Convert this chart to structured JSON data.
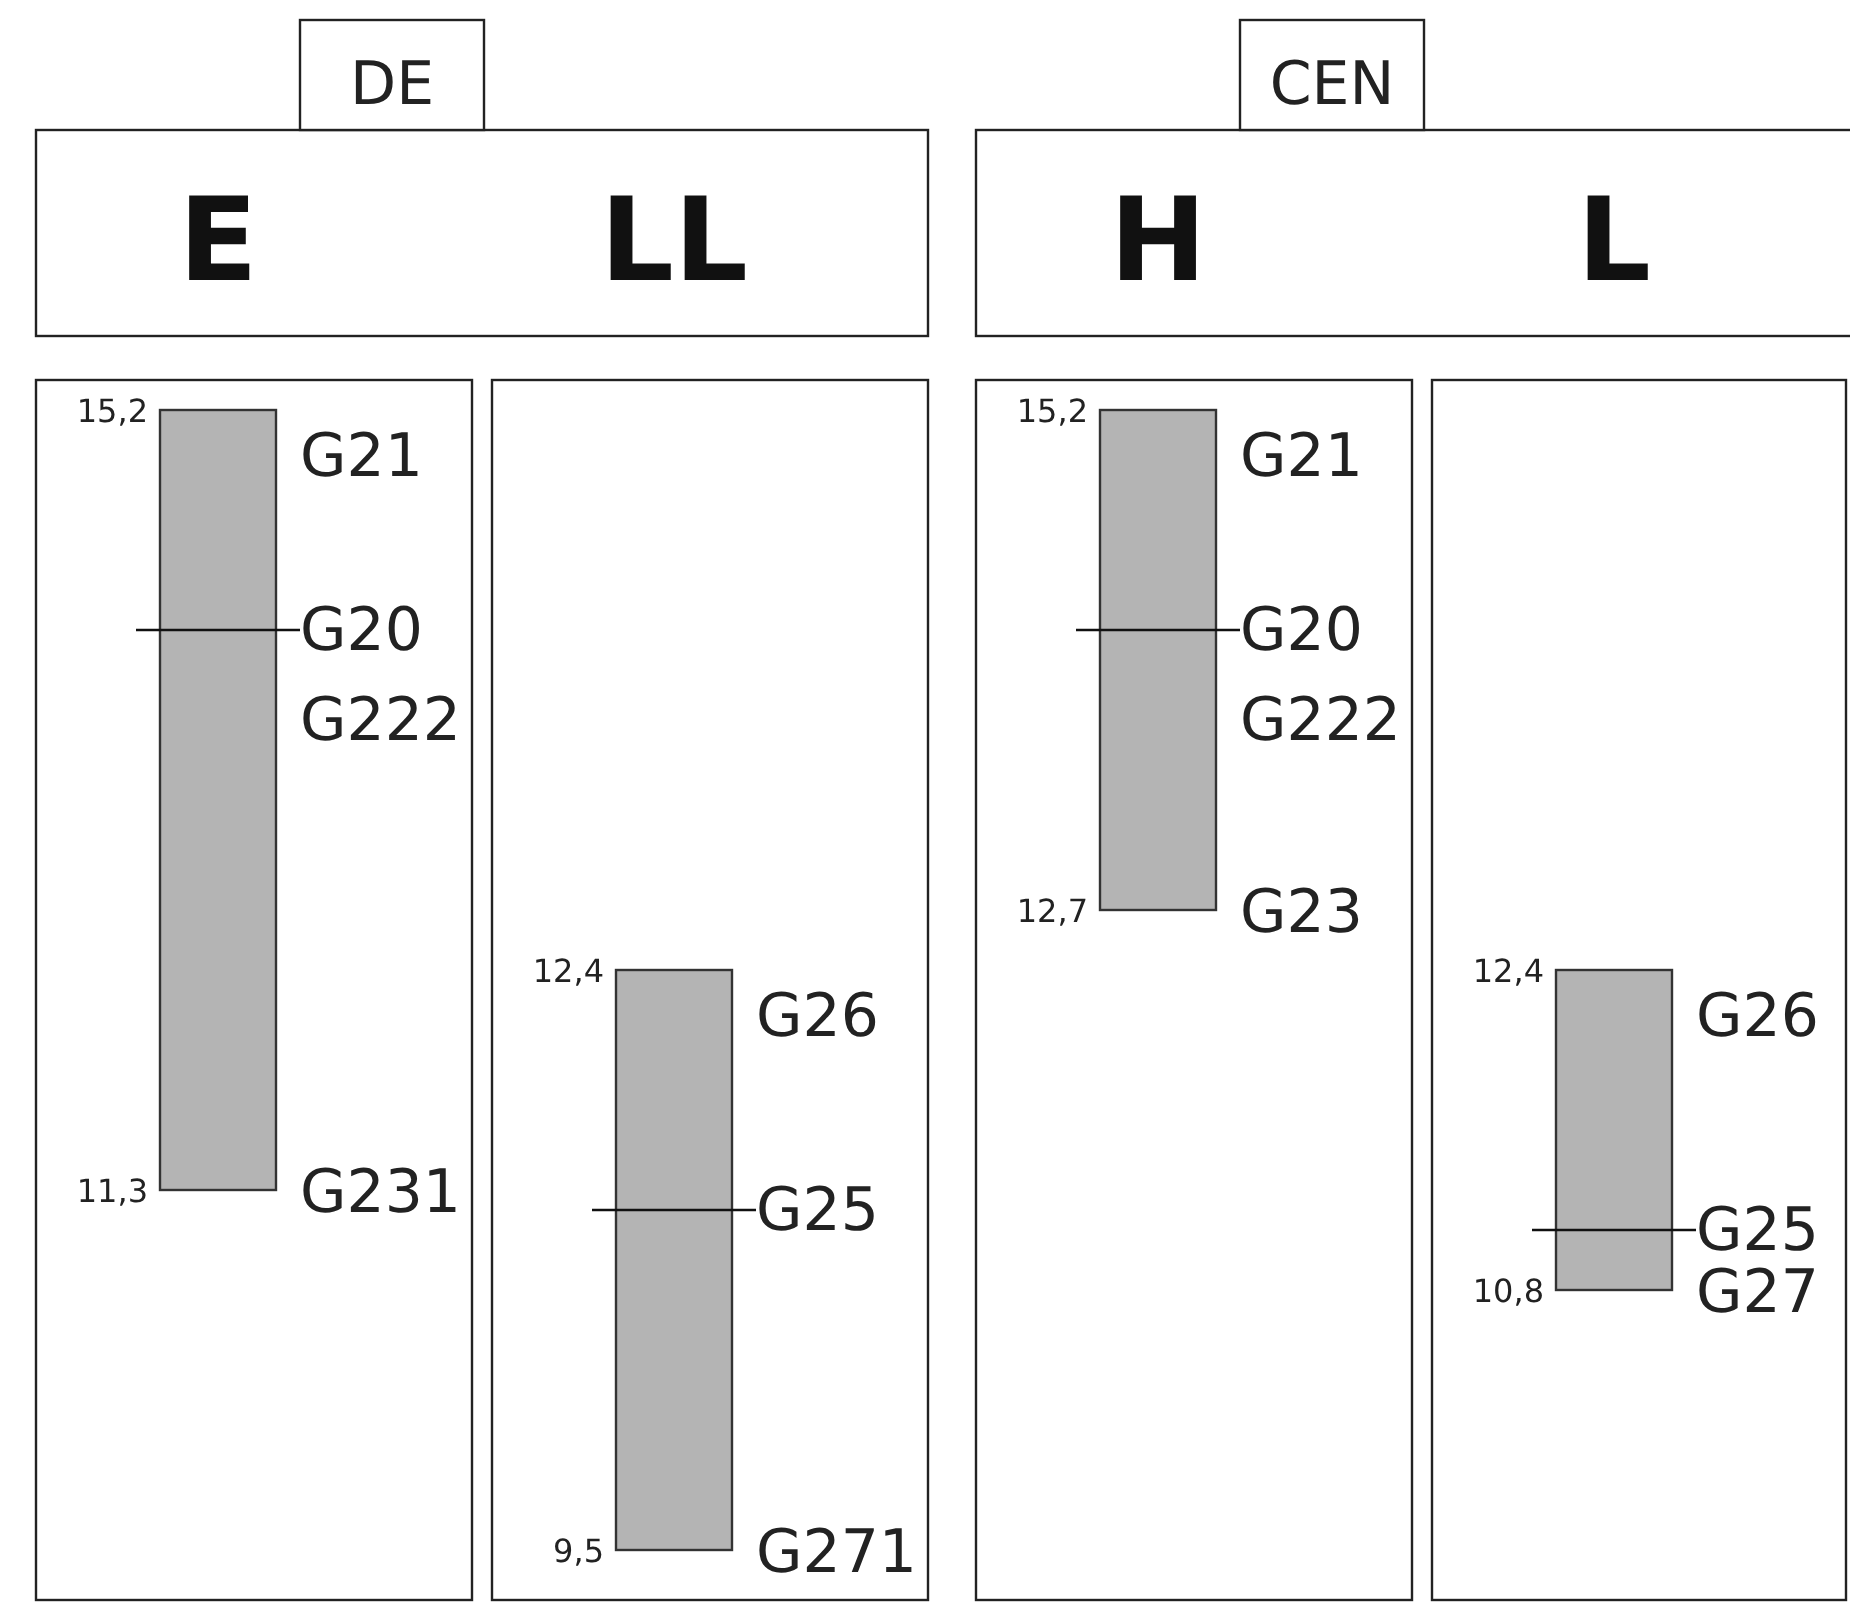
{
  "chart_data": [
    {
      "type": "bar",
      "title": "DE",
      "categories": [
        "E"
      ],
      "base": [
        11.3
      ],
      "values": [
        3.9
      ],
      "color": "#b4b4b4",
      "ylim": [
        9.25,
        15.35
      ],
      "yticks": [
        {
          "value": 15.2,
          "label": "15,2"
        },
        {
          "value": 11.3,
          "label": "11,3"
        }
      ],
      "ref_lines": [
        {
          "axis": "y",
          "value": 14.1,
          "label": "G20"
        }
      ],
      "annotations": [
        "G21",
        "G222",
        "G231"
      ]
    },
    {
      "type": "bar",
      "categories": [
        "LL"
      ],
      "base": [
        9.5
      ],
      "values": [
        2.9
      ],
      "color": "#b4b4b4",
      "ylim": [
        9.25,
        15.35
      ],
      "yticks": [
        {
          "value": 12.4,
          "label": "12,4"
        },
        {
          "value": 9.5,
          "label": "9,5"
        }
      ],
      "ref_lines": [
        {
          "axis": "y",
          "value": 11.2,
          "label": "G25"
        }
      ],
      "annotations": [
        "G26",
        "G271"
      ]
    },
    {
      "type": "bar",
      "title": "CEN",
      "categories": [
        "H"
      ],
      "base": [
        12.7
      ],
      "values": [
        2.5
      ],
      "color": "#b4b4b4",
      "ylim": [
        9.25,
        15.35
      ],
      "yticks": [
        {
          "value": 15.2,
          "label": "15,2"
        },
        {
          "value": 12.7,
          "label": "12,7"
        }
      ],
      "ref_lines": [
        {
          "axis": "y",
          "value": 14.1,
          "label": "G20"
        }
      ],
      "annotations": [
        "G21",
        "G222",
        "G23"
      ]
    },
    {
      "type": "bar",
      "categories": [
        "L"
      ],
      "base": [
        10.8
      ],
      "values": [
        1.6
      ],
      "color": "#b4b4b4",
      "ylim": [
        9.25,
        15.35
      ],
      "yticks": [
        {
          "value": 12.4,
          "label": "12,4"
        },
        {
          "value": 10.8,
          "label": "10,8"
        }
      ],
      "ref_lines": [
        {
          "axis": "y",
          "value": 11.1,
          "label": "G25"
        }
      ],
      "annotations": [
        "G26",
        "G27"
      ]
    }
  ]
}
